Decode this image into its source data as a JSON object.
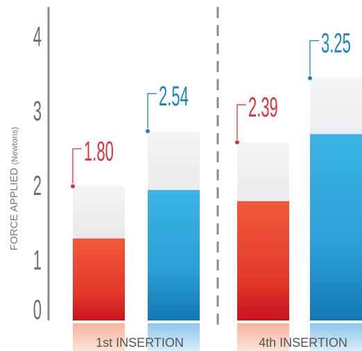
{
  "chart_data": {
    "type": "bar",
    "ylabel_main": "FORCE APPLIED",
    "ylabel_unit": "(Newtons)",
    "ylim": [
      0,
      4
    ],
    "yticks": [
      "0",
      "1",
      "2",
      "3",
      "4"
    ],
    "groups": [
      "1st INSERTION",
      "4th INSERTION"
    ],
    "bars": [
      {
        "group": 0,
        "value": 1.8,
        "label": "1.80",
        "fill_value": 1.1,
        "color": "#e8412f",
        "label_color": "#e0313f"
      },
      {
        "group": 0,
        "value": 2.54,
        "label": "2.54",
        "fill_value": 1.75,
        "color": "#2ea6dc",
        "label_color": "#1a86c0"
      },
      {
        "group": 1,
        "value": 2.39,
        "label": "2.39",
        "fill_value": 1.6,
        "color": "#e8412f",
        "label_color": "#e0313f"
      },
      {
        "group": 1,
        "value": 3.25,
        "label": "3.25",
        "fill_value": 2.5,
        "color": "#2ea6dc",
        "label_color": "#1a86c0"
      }
    ],
    "grid": false,
    "divider": "dashed"
  }
}
